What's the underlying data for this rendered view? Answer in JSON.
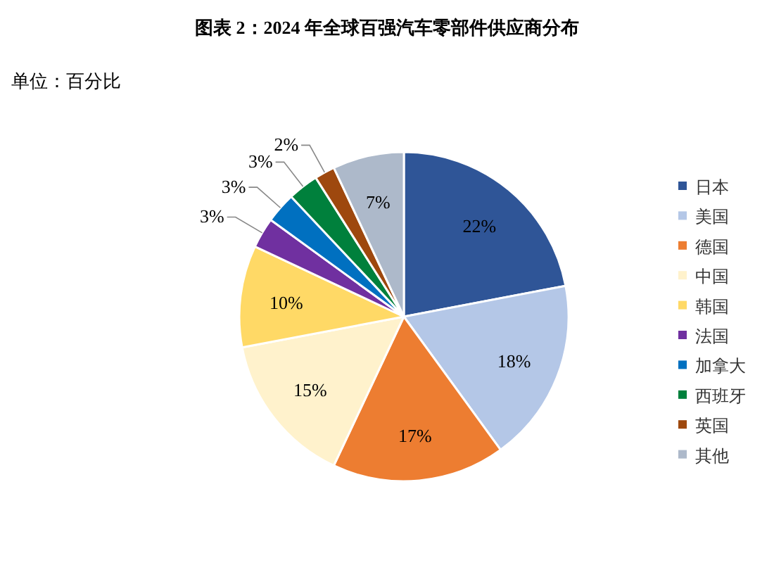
{
  "chart_data": {
    "type": "pie",
    "title": "图表 2：2024 年全球百强汽车零部件供应商分布",
    "subtitle": "单位：百分比",
    "categories": [
      "日本",
      "美国",
      "德国",
      "中国",
      "韩国",
      "法国",
      "加拿大",
      "西班牙",
      "英国",
      "其他"
    ],
    "values": [
      22,
      18,
      17,
      15,
      10,
      3,
      3,
      3,
      2,
      7
    ],
    "colors": [
      "#2f5597",
      "#b4c7e7",
      "#ed7d31",
      "#fff2cc",
      "#ffd966",
      "#7030a0",
      "#0070c0",
      "#00803c",
      "#9e480e",
      "#adb9ca"
    ],
    "value_labels": [
      "22%",
      "18%",
      "17%",
      "15%",
      "10%",
      "3%",
      "3%",
      "3%",
      "2%",
      "7%"
    ],
    "legend": "right"
  }
}
